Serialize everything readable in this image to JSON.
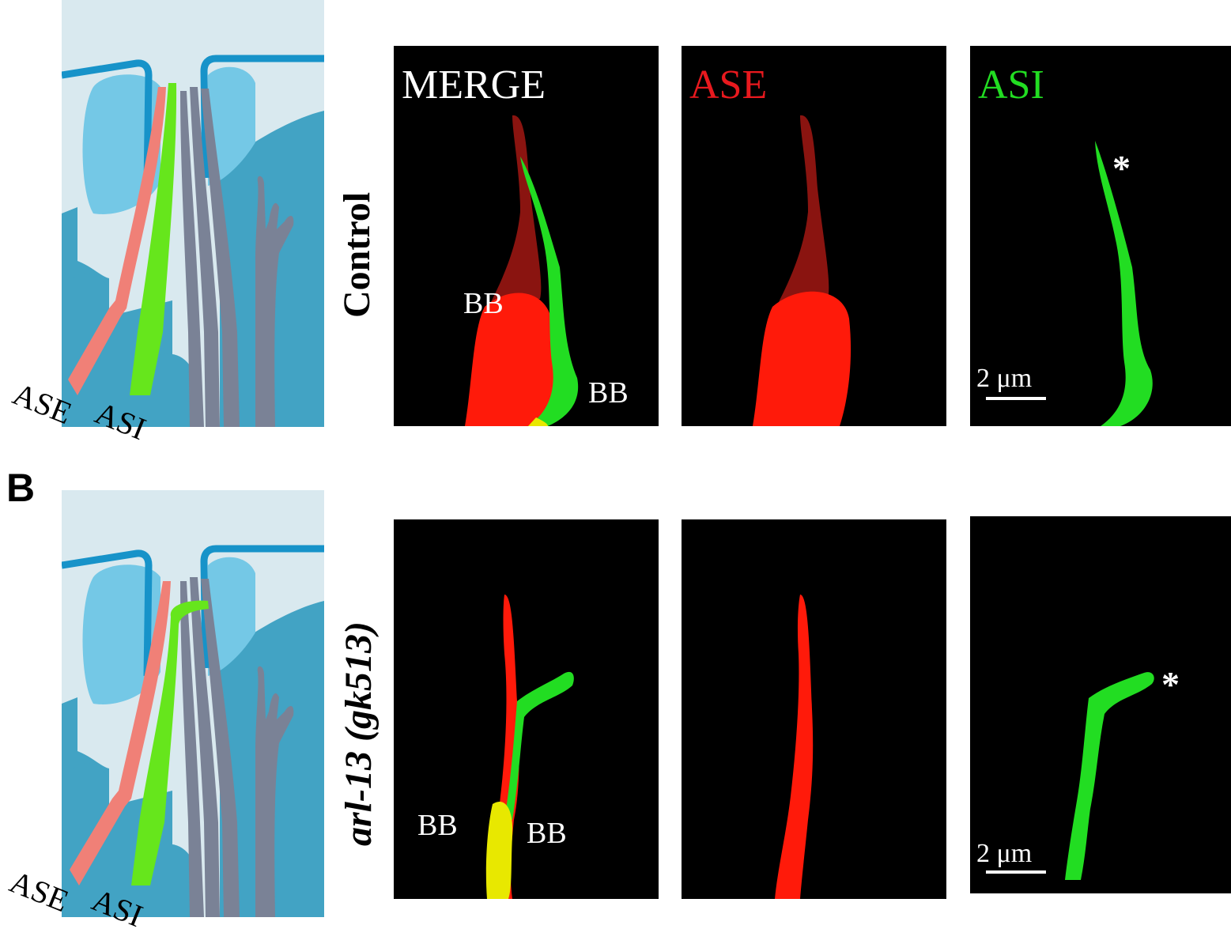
{
  "panel_b_letter": "B",
  "rows": [
    {
      "row_label": "Control",
      "diagram": {
        "ase_label": "ASE",
        "asi_label": "ASI"
      },
      "panels": [
        {
          "title": "MERGE",
          "title_color": "#ffffff",
          "bb_labels": [
            "BB",
            "BB"
          ]
        },
        {
          "title": "ASE",
          "title_color": "#e8191e"
        },
        {
          "title": "ASI",
          "title_color": "#22dd22",
          "asterisk": "*",
          "scale_bar": "2 μm"
        }
      ]
    },
    {
      "row_label": "arl-13 (gk513)",
      "diagram": {
        "ase_label": "ASE",
        "asi_label": "ASI"
      },
      "panels": [
        {
          "title": "",
          "bb_labels": [
            "BB",
            "BB"
          ]
        },
        {
          "title": ""
        },
        {
          "title": "",
          "asterisk": "*",
          "scale_bar": "2 μm"
        }
      ]
    }
  ],
  "colors": {
    "ase": "#f08077",
    "asi": "#66e61c",
    "other_cilia": "#7a8296",
    "background_fluid": "#d9e9ef",
    "tissue": "#42a3c4",
    "socket_cell": "#74c8e6",
    "cuticle": "#1793c9",
    "red_channel": "#ff1a0a",
    "green_channel": "#22dd22"
  }
}
